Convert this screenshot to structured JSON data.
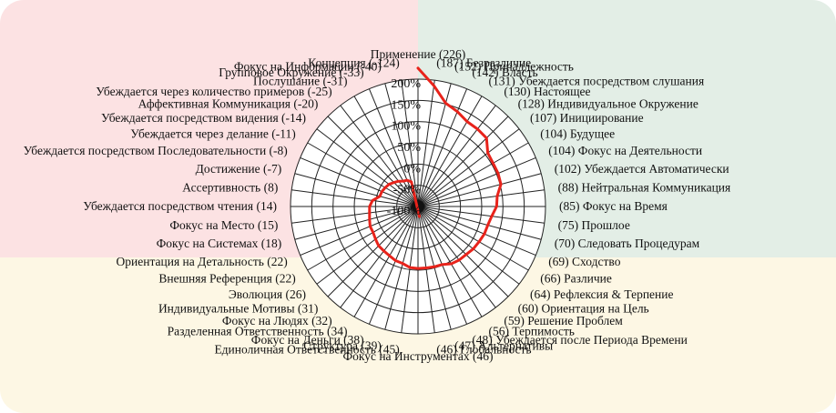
{
  "chart_data": {
    "type": "radar",
    "title": "",
    "r_ticks": [
      "200%",
      "150%",
      "100%",
      "50%",
      "0%",
      "-50%",
      "-100%"
    ],
    "r_range": [
      -100,
      200
    ],
    "grid": true,
    "background_quadrants": {
      "top_left": "#fce2e3",
      "top_right": "#e3eee6",
      "bottom": "#fdf7e4"
    },
    "series": [
      {
        "color": "#e8231b",
        "values": [
          226,
          187,
          152,
          142,
          131,
          130,
          128,
          107,
          104,
          104,
          102,
          88,
          85,
          75,
          70,
          69,
          66,
          64,
          60,
          59,
          56,
          48,
          47,
          46,
          46,
          45,
          39,
          38,
          34,
          32,
          31,
          26,
          22,
          22,
          18,
          15,
          14,
          8,
          -7,
          -8,
          -11,
          -14,
          -20,
          -25,
          -31,
          -33,
          -40,
          -124
        ]
      }
    ],
    "labels": [
      "Применение (226)",
      "(187) Безразличие",
      "(152)  Принадлежность",
      "(142)  Власть",
      "(131) Убеждается посредством слушания",
      "(130)  Настоящее",
      "(128)  Индивидуальное Окружение",
      "(107)   Инициирование",
      "(104) Будущее",
      "(104) Фокус на Деятельности",
      "(102) Убеждается Автоматически",
      "(88)  Нейтральная Коммуникация",
      "(85)  Фокус на Время",
      "(75)  Прошлое",
      "(70)  Следовать Процедурам",
      "(69)  Сходство",
      "(66)  Различие",
      "(64) Рефлексия & Терпение",
      "(60)  Ориентация на Цель",
      "(59)  Решение Проблем",
      "(56)  Терпимость",
      "(48)  Убеждается после Периода Времени",
      "(47)  Альтернативы",
      "(46)  Глобальность",
      "Фокус на Инструментах (46)",
      "Единоличная Ответственность (45)",
      "Структура (39)",
      "Фокус на Деньги (38)",
      "Разделенная Ответственность (34)",
      "Фокус на Людях (32)",
      "Индивидуальные Мотивы (31)",
      "Эволюция (26)",
      "Внешняя Референция (22)",
      "Ориентация на Детальность (22)",
      "Фокус на Системах (18)",
      "Фокус на Место (15)",
      "Убеждается посредством чтения (14)",
      "Ассертивность (8)",
      "Достижение (-7)",
      "Убеждается посредством Последовательности (-8)",
      "Убеждается через делание (-11)",
      "Убеждается посредством видения (-14)",
      "Аффективная Коммуникация (-20)",
      "Убеждается через количество примеров (-25)",
      "Послушание (-31)",
      "Групповое Окружение (-33)",
      "Фокус на Информации (-40)",
      "Концепция (-124)"
    ]
  }
}
